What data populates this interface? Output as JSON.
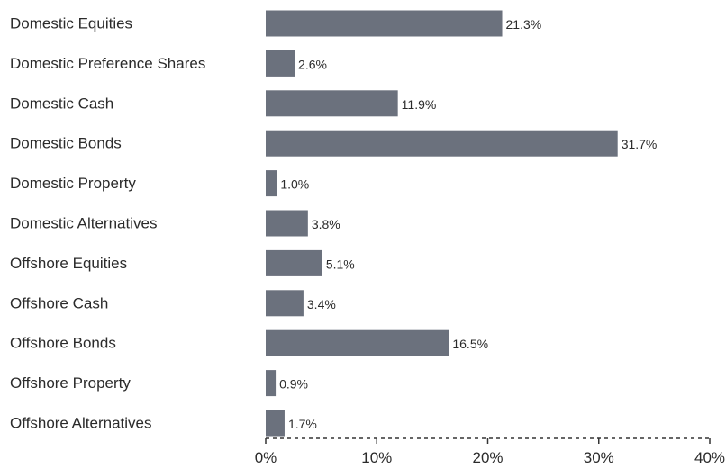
{
  "chart_data": {
    "type": "bar",
    "orientation": "horizontal",
    "categories": [
      "Domestic Equities",
      "Domestic Preference Shares",
      "Domestic Cash",
      "Domestic Bonds",
      "Domestic Property",
      "Domestic Alternatives",
      "Offshore Equities",
      "Offshore Cash",
      "Offshore Bonds",
      "Offshore Property",
      "Offshore Alternatives"
    ],
    "values": [
      21.3,
      2.6,
      11.9,
      31.7,
      1.0,
      3.8,
      5.1,
      3.4,
      16.5,
      0.9,
      1.7
    ],
    "value_labels": [
      "21.3%",
      "2.6%",
      "11.9%",
      "31.7%",
      "1.0%",
      "3.8%",
      "5.1%",
      "3.4%",
      "16.5%",
      "0.9%",
      "1.7%"
    ],
    "xlim": [
      0,
      40
    ],
    "x_ticks": [
      0,
      10,
      20,
      30,
      40
    ],
    "x_tick_labels": [
      "0%",
      "10%",
      "20%",
      "30%",
      "40%"
    ],
    "bar_color": "#6b717d",
    "axis_color": "#333333",
    "grid": false,
    "axis_style": "dashed"
  }
}
